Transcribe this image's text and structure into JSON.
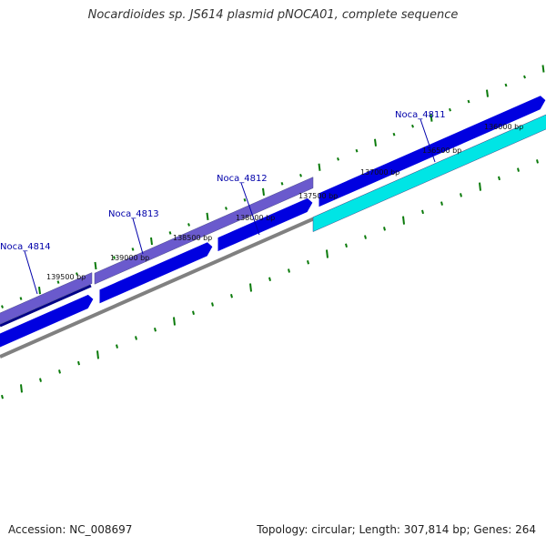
{
  "title": "Nocardioides sp. JS614 plasmid pNOCA01, complete sequence",
  "footer": {
    "accession": "Accession: NC_008697",
    "summary": "Topology: circular; Length: 307,814 bp; Genes: 264"
  },
  "colors": {
    "tick_mark": "#0a7a0a",
    "cds_track": "#0000e0",
    "backbone": "#808080",
    "gene_label": "#0000aa",
    "gene_cyan": "#00e5e5",
    "gene_purple": "#6a5acd",
    "gene_navy": "#000088"
  },
  "scale_labels": [
    {
      "text": "136000 bp"
    },
    {
      "text": "136500 bp"
    },
    {
      "text": "137000 bp"
    },
    {
      "text": "137500 bp"
    },
    {
      "text": "138000 bp"
    },
    {
      "text": "138500 bp"
    },
    {
      "text": "139000 bp"
    },
    {
      "text": "139500 bp"
    }
  ],
  "genes": [
    {
      "name": "Noca_4811"
    },
    {
      "name": "Noca_4812"
    },
    {
      "name": "Noca_4813"
    },
    {
      "name": "Noca_4814"
    }
  ]
}
